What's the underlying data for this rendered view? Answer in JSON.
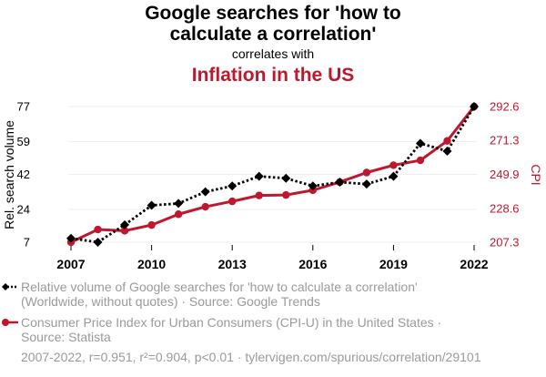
{
  "chart_data": {
    "type": "line",
    "title_line1": "Google searches for 'how to",
    "title_line2": "calculate a correlation'",
    "subtitle": "correlates with",
    "title2": "Inflation in the US",
    "x": [
      2007,
      2008,
      2009,
      2010,
      2011,
      2012,
      2013,
      2014,
      2015,
      2016,
      2017,
      2018,
      2019,
      2020,
      2021,
      2022
    ],
    "x_ticks": [
      "2007",
      "2010",
      "2013",
      "2016",
      "2019",
      "2022"
    ],
    "x_tick_values": [
      2007,
      2010,
      2013,
      2016,
      2019,
      2022
    ],
    "xlim": [
      2007,
      2022
    ],
    "left_axis": {
      "label": "Rel. search volume",
      "ticks": [
        "7",
        "24",
        "42",
        "59",
        "77"
      ],
      "tick_values": [
        7,
        24,
        42,
        59,
        77
      ],
      "ylim": [
        7,
        77
      ]
    },
    "right_axis": {
      "label": "CPI",
      "ticks": [
        "207.3",
        "228.6",
        "249.9",
        "271.3",
        "292.6"
      ],
      "tick_values": [
        207.3,
        228.6,
        249.9,
        271.3,
        292.6
      ],
      "ylim": [
        207.3,
        292.6
      ]
    },
    "series": [
      {
        "name": "Relative volume of Google searches for 'how to calculate a correlation' (Worldwide, without quotes) · Source: Google Trends",
        "axis": "left",
        "color": "#000000",
        "marker": "diamond",
        "style": "dotted",
        "values": [
          9,
          7,
          16,
          26,
          27,
          33,
          36,
          41,
          40,
          36,
          38,
          37,
          41,
          58,
          54,
          77
        ]
      },
      {
        "name": "Consumer Price Index for Urban Consumers (CPI-U) in the United States · Source: Statista",
        "axis": "right",
        "color": "#c0172f",
        "marker": "circle",
        "style": "solid",
        "values": [
          207.3,
          215.3,
          214.5,
          218.1,
          224.9,
          229.6,
          233.0,
          236.7,
          237.0,
          240.0,
          245.1,
          251.1,
          255.7,
          258.8,
          271.0,
          292.6
        ]
      }
    ],
    "legend": [
      {
        "line1": "Relative volume of Google searches for 'how to calculate a correlation'",
        "line2": "(Worldwide, without quotes) · Source: Google Trends"
      },
      {
        "line1": "Consumer Price Index for Urban Consumers (CPI-U) in the United States ·",
        "line2": "Source: Statista"
      }
    ],
    "footer": "2007-2022, r=0.951, r²=0.904, p<0.01 · tylervigen.com/spurious/correlation/29101",
    "colors": {
      "accent": "#c0172f",
      "black": "#000000",
      "muted": "#9a9a9a",
      "grid": "#eeeeee"
    }
  }
}
